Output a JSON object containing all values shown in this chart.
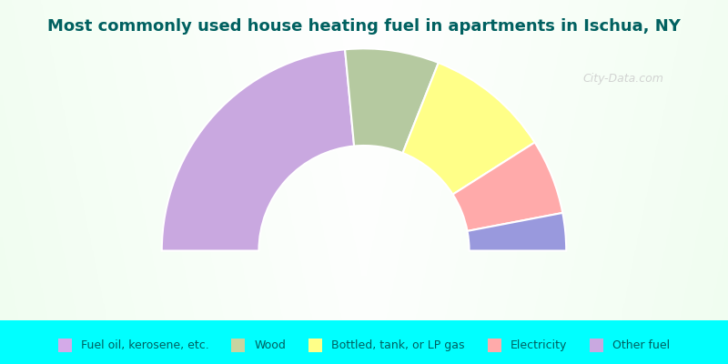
{
  "title": "Most commonly used house heating fuel in apartments in Ischua, NY",
  "title_color": "#006060",
  "title_fontsize": 13,
  "background_color": "#00FFFF",
  "segments_draw_order": [
    {
      "label": "Other fuel",
      "value": 47,
      "color": "#c9a8e0"
    },
    {
      "label": "Wood",
      "value": 15,
      "color": "#b5c9a0"
    },
    {
      "label": "Bottled, tank, or LP gas",
      "value": 20,
      "color": "#ffff88"
    },
    {
      "label": "Electricity",
      "value": 12,
      "color": "#ffaaaa"
    },
    {
      "label": "Fuel oil, kerosene, etc.",
      "value": 6,
      "color": "#9999dd"
    }
  ],
  "legend_items": [
    {
      "label": "Fuel oil, kerosene, etc.",
      "color": "#d4aae8"
    },
    {
      "label": "Wood",
      "color": "#c8d4a0"
    },
    {
      "label": "Bottled, tank, or LP gas",
      "color": "#ffff88"
    },
    {
      "label": "Electricity",
      "color": "#ffaaaa"
    },
    {
      "label": "Other fuel",
      "color": "#c9a8e0"
    }
  ],
  "outer_r": 1.0,
  "inner_r": 0.52,
  "start_angle": 180.0,
  "edge_color": "white",
  "edge_lw": 1.5,
  "watermark": "City-Data.com",
  "watermark_color": "#cccccc",
  "legend_text_color": "#006060",
  "legend_fontsize": 9
}
